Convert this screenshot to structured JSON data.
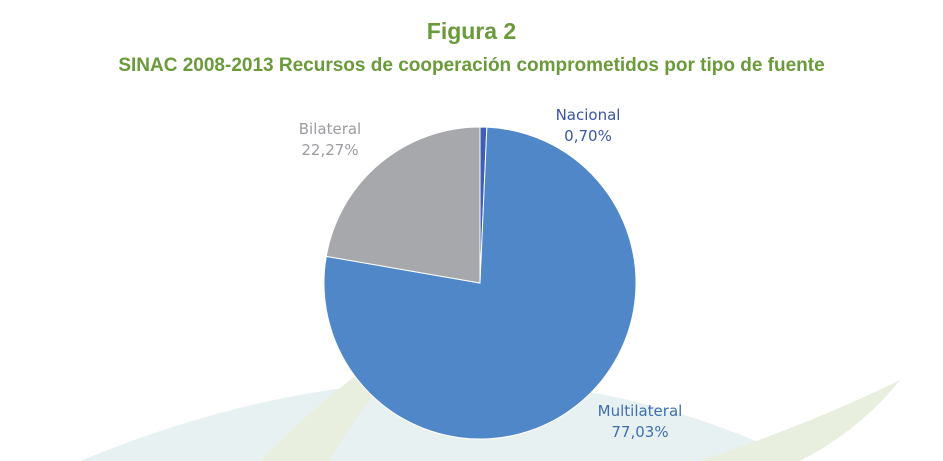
{
  "header": {
    "figure_label": "Figura 2",
    "subtitle": "SINAC 2008-2013 Recursos de cooperación comprometidos por tipo de fuente"
  },
  "colors": {
    "title": "#6a9a3a",
    "background_arc_light": "#e8f1f2",
    "background_arc_green": "#e9efdf"
  },
  "chart_data": {
    "type": "pie",
    "title": "",
    "slices": [
      {
        "label": "Nacional",
        "value": 0.7,
        "display": "0,70%",
        "color": "#3f5fb4",
        "label_color": "#3a55a8"
      },
      {
        "label": "Multilateral",
        "value": 77.03,
        "display": "77,03%",
        "color": "#4f87c8",
        "label_color": "#3f6fae"
      },
      {
        "label": "Bilateral",
        "value": 22.27,
        "display": "22,27%",
        "color": "#a6a8ab",
        "label_color": "#9a9c9f"
      }
    ],
    "start_angle_deg": 0,
    "direction": "clockwise"
  }
}
